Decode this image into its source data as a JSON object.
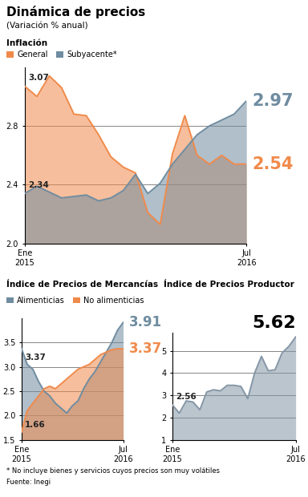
{
  "title": "Dinámica de precios",
  "subtitle": "(Variación % anual)",
  "footnote": "* No incluye bienes y servicios cuyos precios son muy volátiles",
  "source": "Fuente: Inegi",
  "chart_data": [
    {
      "type": "area",
      "title": "Inflación",
      "categories": [
        "Ene\n2015",
        null,
        null,
        null,
        null,
        null,
        null,
        null,
        null,
        null,
        null,
        null,
        null,
        null,
        null,
        null,
        null,
        null,
        "Jul\n2016"
      ],
      "series": [
        {
          "name": "General",
          "color": "#f08a4b",
          "values": [
            3.07,
            3.0,
            3.14,
            3.06,
            2.88,
            2.87,
            2.74,
            2.59,
            2.52,
            2.48,
            2.21,
            2.13,
            2.61,
            2.87,
            2.6,
            2.54,
            2.6,
            2.54,
            2.54
          ],
          "value_labels": [
            "3.07",
            null,
            null,
            null,
            null,
            null,
            null,
            null,
            null,
            null,
            null,
            null,
            null,
            null,
            null,
            null,
            null,
            null,
            "2.54"
          ]
        },
        {
          "name": "Subyacente*",
          "color": "#6f8ca0",
          "values": [
            2.34,
            2.39,
            2.35,
            2.31,
            2.32,
            2.33,
            2.29,
            2.31,
            2.36,
            2.47,
            2.34,
            2.41,
            2.54,
            2.64,
            2.74,
            2.8,
            2.84,
            2.88,
            2.97
          ],
          "value_labels": [
            "2.34",
            null,
            null,
            null,
            null,
            null,
            null,
            null,
            null,
            null,
            null,
            null,
            null,
            null,
            null,
            null,
            null,
            null,
            "2.97"
          ]
        }
      ],
      "ylim": [
        2.0,
        3.2
      ],
      "yticks": [
        2.0,
        2.4,
        2.8
      ],
      "grid": true,
      "legend": "upper left",
      "data_labels": true
    },
    {
      "type": "area",
      "title": "Índice de Precios de Mercancías",
      "categories": [
        "Ene\n2015",
        null,
        null,
        null,
        null,
        null,
        null,
        null,
        null,
        null,
        null,
        null,
        null,
        null,
        null,
        null,
        null,
        null,
        "Jul\n2016"
      ],
      "series": [
        {
          "name": "Alimenticias",
          "color": "#6f8ca0",
          "values": [
            3.37,
            3.05,
            2.95,
            2.7,
            2.5,
            2.4,
            2.25,
            2.15,
            2.05,
            2.2,
            2.3,
            2.55,
            2.75,
            2.9,
            3.1,
            3.3,
            3.5,
            3.75,
            3.91
          ],
          "value_labels": [
            "3.37",
            null,
            null,
            null,
            null,
            null,
            null,
            null,
            null,
            null,
            null,
            null,
            null,
            null,
            null,
            null,
            null,
            null,
            "3.91"
          ]
        },
        {
          "name": "No alimenticias",
          "color": "#f08a4b",
          "values": [
            1.66,
            2.1,
            2.25,
            2.4,
            2.55,
            2.6,
            2.55,
            2.65,
            2.75,
            2.85,
            2.95,
            3.0,
            3.05,
            3.15,
            3.25,
            3.3,
            3.35,
            3.37,
            3.37
          ],
          "value_labels": [
            "1.66",
            null,
            null,
            null,
            null,
            null,
            null,
            null,
            null,
            null,
            null,
            null,
            null,
            null,
            null,
            null,
            null,
            null,
            "3.37"
          ]
        }
      ],
      "ylim": [
        1.5,
        4.0
      ],
      "yticks": [
        1.5,
        2.0,
        2.5,
        3.0,
        3.5
      ],
      "grid": true,
      "legend": "upper left",
      "data_labels": true
    },
    {
      "type": "area",
      "title": "Índice de Precios Productor",
      "categories": [
        "Ene\n2015",
        null,
        null,
        null,
        null,
        null,
        null,
        null,
        null,
        null,
        null,
        null,
        null,
        null,
        null,
        null,
        null,
        null,
        "Jul\n2016"
      ],
      "color": "#8496a6",
      "values": [
        2.56,
        2.2,
        2.75,
        2.7,
        2.35,
        3.15,
        3.25,
        3.2,
        3.45,
        3.45,
        3.4,
        2.85,
        4.0,
        4.75,
        4.1,
        4.15,
        4.9,
        5.2,
        5.62
      ],
      "value_labels": [
        "2.56",
        null,
        null,
        null,
        null,
        null,
        null,
        null,
        null,
        null,
        null,
        null,
        null,
        null,
        null,
        null,
        null,
        null,
        "5.62"
      ],
      "ylim": [
        1,
        5.8
      ],
      "yticks": [
        1,
        2,
        3,
        4,
        5
      ],
      "grid": true,
      "data_labels": true
    }
  ]
}
